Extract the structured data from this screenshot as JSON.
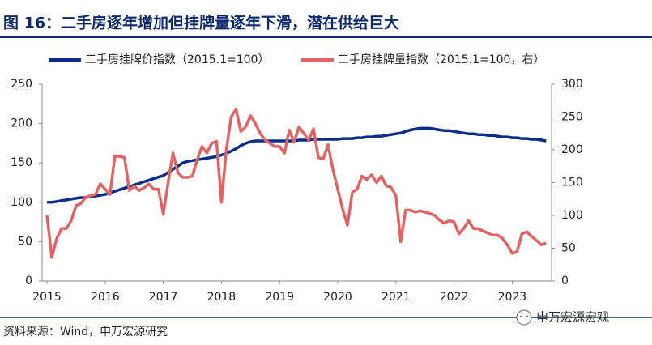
{
  "chart_data": {
    "type": "line",
    "title": "图 16：二手房逐年增加但挂牌量逐年下滑，潜在供给巨大",
    "categories": [
      "2015",
      null,
      null,
      null,
      null,
      null,
      null,
      null,
      null,
      null,
      null,
      null,
      "2016",
      null,
      null,
      null,
      null,
      null,
      null,
      null,
      null,
      null,
      null,
      null,
      "2017",
      null,
      null,
      null,
      null,
      null,
      null,
      null,
      null,
      null,
      null,
      null,
      "2018",
      null,
      null,
      null,
      null,
      null,
      null,
      null,
      null,
      null,
      null,
      null,
      "2019",
      null,
      null,
      null,
      null,
      null,
      null,
      null,
      null,
      null,
      null,
      null,
      "2020",
      null,
      null,
      null,
      null,
      null,
      null,
      null,
      null,
      null,
      null,
      null,
      "2021",
      null,
      null,
      null,
      null,
      null,
      null,
      null,
      null,
      null,
      null,
      null,
      "2022",
      null,
      null,
      null,
      null,
      null,
      null,
      null,
      null,
      null,
      null,
      null,
      "2023",
      null,
      null,
      null,
      null,
      null,
      null,
      null
    ],
    "series": [
      {
        "name": "二手房挂牌价指数（2015.1=100）",
        "color": "#0a2d8c",
        "axis": "y",
        "values": [
          100,
          100,
          101,
          102,
          103,
          104,
          105,
          106,
          106,
          107,
          108,
          109,
          110,
          112,
          114,
          116,
          118,
          120,
          122,
          124,
          126,
          128,
          130,
          132,
          134,
          138,
          142,
          146,
          150,
          152,
          153,
          154,
          155,
          156,
          157,
          158,
          160,
          162,
          165,
          168,
          172,
          175,
          177,
          178,
          178,
          178,
          178,
          178,
          178,
          178,
          178,
          178,
          179,
          179,
          179,
          180,
          180,
          180,
          180,
          180,
          180,
          181,
          181,
          181,
          182,
          182,
          183,
          183,
          184,
          184,
          185,
          186,
          187,
          188,
          190,
          192,
          193,
          194,
          194,
          194,
          193,
          192,
          191,
          191,
          190,
          189,
          188,
          187,
          187,
          186,
          186,
          185,
          185,
          184,
          183,
          183,
          182,
          182,
          181,
          181,
          180,
          180,
          179,
          178
        ]
      },
      {
        "name": "二手房挂牌量指数（2015.1=100，右）",
        "color": "#e06464",
        "axis": "y2",
        "values": [
          100,
          36,
          65,
          80,
          80,
          92,
          115,
          118,
          128,
          130,
          132,
          148,
          140,
          132,
          190,
          190,
          188,
          138,
          145,
          138,
          142,
          148,
          140,
          140,
          102,
          150,
          195,
          165,
          158,
          158,
          160,
          185,
          205,
          195,
          210,
          213,
          120,
          200,
          250,
          262,
          228,
          235,
          252,
          240,
          225,
          215,
          210,
          205,
          205,
          195,
          230,
          212,
          235,
          225,
          215,
          232,
          188,
          186,
          208,
          170,
          140,
          110,
          85,
          135,
          140,
          160,
          155,
          162,
          150,
          160,
          145,
          143,
          130,
          60,
          108,
          108,
          105,
          107,
          105,
          103,
          100,
          93,
          88,
          92,
          90,
          72,
          80,
          92,
          80,
          80,
          76,
          73,
          70,
          70,
          65,
          55,
          42,
          45,
          72,
          75,
          68,
          62,
          55,
          58
        ]
      }
    ],
    "ylim": [
      0,
      250
    ],
    "yticks": [
      0,
      50,
      100,
      150,
      200,
      250
    ],
    "y2lim": [
      0,
      300
    ],
    "y2ticks": [
      0,
      50,
      100,
      150,
      200,
      250,
      300
    ],
    "source": "资料来源：Wind，申万宏源研究",
    "watermark": "申万宏源宏观"
  }
}
